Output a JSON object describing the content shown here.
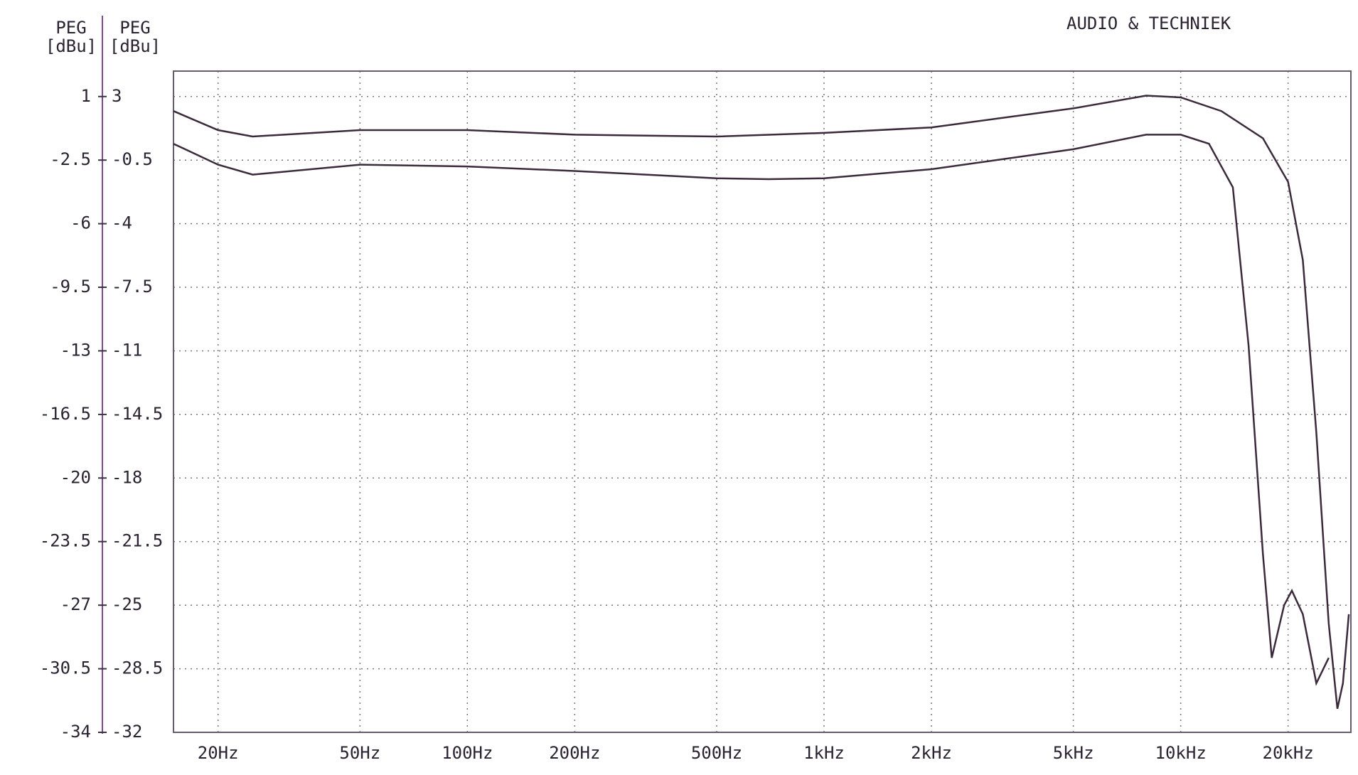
{
  "chart_data": {
    "type": "line",
    "brand": "AUDIO & TECHNIEK",
    "ylabel": [
      "PEG",
      "[dBu]"
    ],
    "y2label": [
      "PEG",
      "[dBu]"
    ],
    "xscale": "log",
    "grid": true,
    "xlim": [
      15,
      30000
    ],
    "xticks": [
      {
        "value": 20,
        "label": "20Hz"
      },
      {
        "value": 50,
        "label": "50Hz"
      },
      {
        "value": 100,
        "label": "100Hz"
      },
      {
        "value": 200,
        "label": "200Hz"
      },
      {
        "value": 500,
        "label": "500Hz"
      },
      {
        "value": 1000,
        "label": "1kHz"
      },
      {
        "value": 2000,
        "label": "2kHz"
      },
      {
        "value": 5000,
        "label": "5kHz"
      },
      {
        "value": 10000,
        "label": "10kHz"
      },
      {
        "value": 20000,
        "label": "20kHz"
      }
    ],
    "ylim": [
      -34,
      2.4
    ],
    "yticks": [
      1,
      -2.5,
      -6,
      -9.5,
      -13,
      -16.5,
      -20,
      -23.5,
      -27,
      -30.5,
      -34
    ],
    "y2lim": [
      -32,
      4.4
    ],
    "y2ticks": [
      3,
      -0.5,
      -4,
      -7.5,
      -11,
      -14.5,
      -18,
      -21.5,
      -25,
      -28.5,
      -32
    ],
    "series": [
      {
        "color": "#3b2a3b",
        "x": [
          15,
          20,
          25,
          50,
          100,
          200,
          500,
          1000,
          2000,
          5000,
          8000,
          10000,
          13000,
          17000,
          20000,
          22000,
          24000,
          26000,
          27500,
          28500,
          29600
        ],
        "values": [
          0.2,
          -0.85,
          -1.2,
          -0.85,
          -0.85,
          -1.1,
          -1.2,
          -1.0,
          -0.7,
          0.35,
          1.05,
          0.95,
          0.2,
          -1.3,
          -3.7,
          -8,
          -17.5,
          -28,
          -32.7,
          -31.3,
          -27.5
        ]
      },
      {
        "color": "#3b2a3b",
        "x": [
          15,
          20,
          25,
          50,
          100,
          200,
          500,
          700,
          1000,
          2000,
          5000,
          8000,
          10000,
          12000,
          14000,
          15500,
          17000,
          18000,
          19500,
          20500,
          22000,
          24000,
          26000
        ],
        "values": [
          -1.6,
          -2.75,
          -3.3,
          -2.75,
          -2.85,
          -3.1,
          -3.5,
          -3.55,
          -3.5,
          -3.0,
          -1.9,
          -1.1,
          -1.1,
          -1.6,
          -4.0,
          -12.7,
          -24.2,
          -29.9,
          -27,
          -26.2,
          -27.5,
          -31.3,
          -29.9
        ]
      }
    ]
  }
}
